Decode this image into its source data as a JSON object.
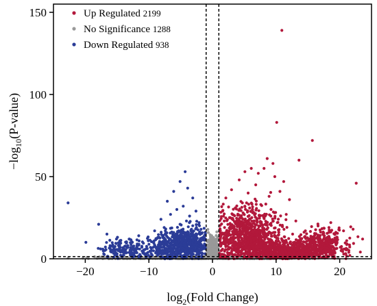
{
  "chart_data": {
    "type": "scatter",
    "title": "",
    "xlabel": {
      "prefix": "log",
      "sub": "2",
      "suffix": "(Fold Change)"
    },
    "ylabel": {
      "prefix": "−log",
      "sub": "10",
      "suffix": "(P-value)"
    },
    "xlim": [
      -25,
      25
    ],
    "ylim": [
      0,
      155
    ],
    "x_ticks": [
      -20,
      -10,
      0,
      10,
      20
    ],
    "y_ticks": [
      0,
      50,
      100,
      150
    ],
    "grid": false,
    "legend_position": "top-left",
    "thresholds": {
      "x": [
        -1,
        1
      ],
      "y": 1.3
    },
    "threshold_style": "dashed",
    "series": [
      {
        "name": "Up Regulated",
        "count": "2199",
        "color": "#b2183b",
        "points": [
          [
            10.9,
            139
          ],
          [
            10.1,
            83
          ],
          [
            15.7,
            72
          ],
          [
            8.6,
            61
          ],
          [
            13.6,
            60
          ],
          [
            9.5,
            58
          ],
          [
            8.1,
            55
          ],
          [
            22.6,
            46
          ],
          [
            6.1,
            55
          ],
          [
            5.1,
            53
          ],
          [
            7.2,
            52
          ],
          [
            9.8,
            50
          ],
          [
            4.2,
            48
          ],
          [
            11.2,
            47
          ],
          [
            6.8,
            45
          ],
          [
            3.0,
            42
          ],
          [
            10.6,
            41
          ],
          [
            5.6,
            40
          ],
          [
            8.9,
            38
          ],
          [
            2.1,
            37
          ],
          [
            12.1,
            36
          ],
          [
            4.7,
            34
          ],
          [
            7.6,
            33
          ],
          [
            3.6,
            31
          ],
          [
            9.2,
            30
          ],
          [
            1.6,
            29
          ],
          [
            6.3,
            28
          ],
          [
            11.6,
            27
          ],
          [
            8.3,
            26
          ],
          [
            2.8,
            25
          ],
          [
            5.1,
            24
          ],
          [
            13.1,
            23
          ],
          [
            18.6,
            22
          ],
          [
            10.2,
            22
          ],
          [
            3.9,
            21
          ],
          [
            7.3,
            20
          ],
          [
            16.6,
            20
          ],
          [
            1.9,
            19
          ],
          [
            6.6,
            18
          ],
          [
            14.6,
            17
          ],
          [
            20.6,
            17
          ],
          [
            9.6,
            16
          ],
          [
            4.4,
            16
          ],
          [
            12.6,
            15
          ],
          [
            17.6,
            14
          ],
          [
            2.4,
            14
          ],
          [
            8.1,
            13
          ],
          [
            19.6,
            13
          ],
          [
            5.9,
            12
          ],
          [
            15.1,
            12
          ],
          [
            11.1,
            11
          ],
          [
            3.3,
            11
          ],
          [
            21.1,
            11
          ],
          [
            7.9,
            10
          ],
          [
            16.1,
            10
          ],
          [
            13.6,
            9
          ],
          [
            1.4,
            9
          ],
          [
            18.1,
            9
          ],
          [
            9.1,
            8
          ],
          [
            4.9,
            8
          ],
          [
            14.1,
            7
          ],
          [
            20.1,
            7
          ],
          [
            6.9,
            7
          ],
          [
            11.9,
            6
          ],
          [
            17.1,
            6
          ],
          [
            2.6,
            6
          ],
          [
            15.6,
            5
          ],
          [
            8.6,
            5
          ],
          [
            19.1,
            5
          ],
          [
            12.9,
            4
          ],
          [
            4.1,
            4
          ],
          [
            16.9,
            4
          ],
          [
            10.6,
            3
          ],
          [
            14.9,
            3
          ],
          [
            18.9,
            3
          ],
          [
            6.1,
            3
          ],
          [
            13.1,
            2
          ],
          [
            21.6,
            2
          ],
          [
            23.6,
            12
          ],
          [
            22.1,
            18
          ]
        ],
        "clusters": [
          {
            "cx": 5.5,
            "cy": 12,
            "sx": 2.6,
            "sy": 7,
            "n": 650
          },
          {
            "cx": 5.5,
            "cy": 24,
            "sx": 2.3,
            "sy": 6,
            "n": 140
          },
          {
            "cx": 8.0,
            "cy": 5,
            "sx": 2.2,
            "sy": 3,
            "n": 260
          },
          {
            "cx": 15.0,
            "cy": 6,
            "sx": 2.5,
            "sy": 3.5,
            "n": 380
          },
          {
            "cx": 12.0,
            "cy": 2.5,
            "sx": 1.6,
            "sy": 1.2,
            "n": 200
          },
          {
            "cx": 17.5,
            "cy": 11,
            "sx": 1.8,
            "sy": 4,
            "n": 170
          }
        ]
      },
      {
        "name": "No Significance",
        "count": "1288",
        "color": "#999999",
        "clusters": [
          {
            "cx": -1.2,
            "cy": 2.5,
            "sx": 3.2,
            "sy": 2.2,
            "n": 520
          },
          {
            "cx": 7.0,
            "cy": 0.6,
            "sx": 5.0,
            "sy": 0.5,
            "n": 260
          },
          {
            "cx": -10.0,
            "cy": 0.6,
            "sx": 4.5,
            "sy": 0.5,
            "n": 220
          },
          {
            "cx": 0.0,
            "cy": 7,
            "sx": 0.6,
            "sy": 4,
            "n": 180
          }
        ]
      },
      {
        "name": "Down Regulated",
        "count": "938",
        "color": "#2b3c97",
        "points": [
          [
            -22.7,
            34
          ],
          [
            -17.9,
            21
          ],
          [
            -19.9,
            10
          ],
          [
            -16.6,
            15
          ],
          [
            -15.1,
            12
          ],
          [
            -4.3,
            53
          ],
          [
            -5.1,
            47
          ],
          [
            -3.9,
            43
          ],
          [
            -6.1,
            41
          ],
          [
            -7.1,
            35
          ],
          [
            -3.1,
            37
          ],
          [
            -4.6,
            32
          ],
          [
            -5.6,
            30
          ],
          [
            -2.6,
            29
          ],
          [
            -6.6,
            27
          ],
          [
            -3.6,
            26
          ],
          [
            -8.1,
            24
          ],
          [
            -4.1,
            23
          ],
          [
            -2.1,
            22
          ],
          [
            -5.1,
            21
          ],
          [
            -7.6,
            19
          ],
          [
            -9.1,
            17
          ],
          [
            -3.3,
            18
          ],
          [
            -6.1,
            16
          ],
          [
            -8.6,
            13
          ],
          [
            -10.1,
            11
          ],
          [
            -11.6,
            14
          ],
          [
            -13.1,
            12
          ],
          [
            -12.6,
            10
          ],
          [
            -14.6,
            9
          ],
          [
            -16.1,
            8
          ],
          [
            -17.6,
            6
          ],
          [
            -15.6,
            5
          ],
          [
            -13.9,
            6
          ],
          [
            -11.1,
            7
          ],
          [
            -9.6,
            5
          ],
          [
            -12.1,
            4
          ],
          [
            -10.6,
            3
          ],
          [
            -17.1,
            3
          ],
          [
            -14.1,
            2
          ]
        ],
        "clusters": [
          {
            "cx": -3.8,
            "cy": 9,
            "sx": 1.6,
            "sy": 5,
            "n": 420
          },
          {
            "cx": -6.5,
            "cy": 7,
            "sx": 1.7,
            "sy": 4.5,
            "n": 230
          },
          {
            "cx": -13.0,
            "cy": 6,
            "sx": 2.3,
            "sy": 3,
            "n": 170
          }
        ]
      }
    ]
  }
}
